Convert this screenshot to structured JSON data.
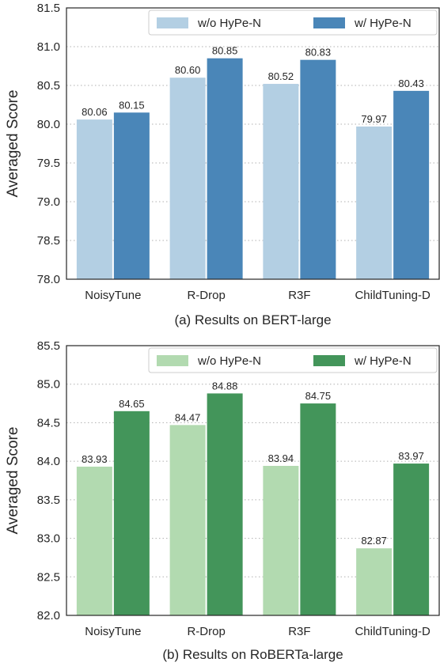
{
  "chart_data": [
    {
      "type": "bar",
      "caption": "(a) Results on BERT-large",
      "ylabel": "Averaged Score",
      "ylim": [
        78.0,
        81.5
      ],
      "yticks": [
        "78.0",
        "78.5",
        "79.0",
        "79.5",
        "80.0",
        "80.5",
        "81.0",
        "81.5"
      ],
      "categories": [
        "NoisyTune",
        "R-Drop",
        "R3F",
        "ChildTuning-D"
      ],
      "grid": "horizontal dotted",
      "legend_position": "top-right",
      "series": [
        {
          "name": "w/o HyPe-N",
          "color": "#b3cfe3",
          "values": [
            80.06,
            80.6,
            80.52,
            79.97
          ],
          "labels": [
            "80.06",
            "80.60",
            "80.52",
            "79.97"
          ]
        },
        {
          "name": "w/ HyPe-N",
          "color": "#4a86b8",
          "values": [
            80.15,
            80.85,
            80.83,
            80.43
          ],
          "labels": [
            "80.15",
            "80.85",
            "80.83",
            "80.43"
          ]
        }
      ]
    },
    {
      "type": "bar",
      "caption": "(b) Results on RoBERTa-large",
      "ylabel": "Averaged Score",
      "ylim": [
        82.0,
        85.5
      ],
      "yticks": [
        "82.0",
        "82.5",
        "83.0",
        "83.5",
        "84.0",
        "84.5",
        "85.0",
        "85.5"
      ],
      "categories": [
        "NoisyTune",
        "R-Drop",
        "R3F",
        "ChildTuning-D"
      ],
      "grid": "horizontal dotted",
      "legend_position": "top-right",
      "series": [
        {
          "name": "w/o HyPe-N",
          "color": "#b2dab0",
          "values": [
            83.93,
            84.47,
            83.94,
            82.87
          ],
          "labels": [
            "83.93",
            "84.47",
            "83.94",
            "82.87"
          ]
        },
        {
          "name": "w/ HyPe-N",
          "color": "#43955a",
          "values": [
            84.65,
            84.88,
            84.75,
            83.97
          ],
          "labels": [
            "84.65",
            "84.88",
            "84.75",
            "83.97"
          ]
        }
      ]
    }
  ]
}
